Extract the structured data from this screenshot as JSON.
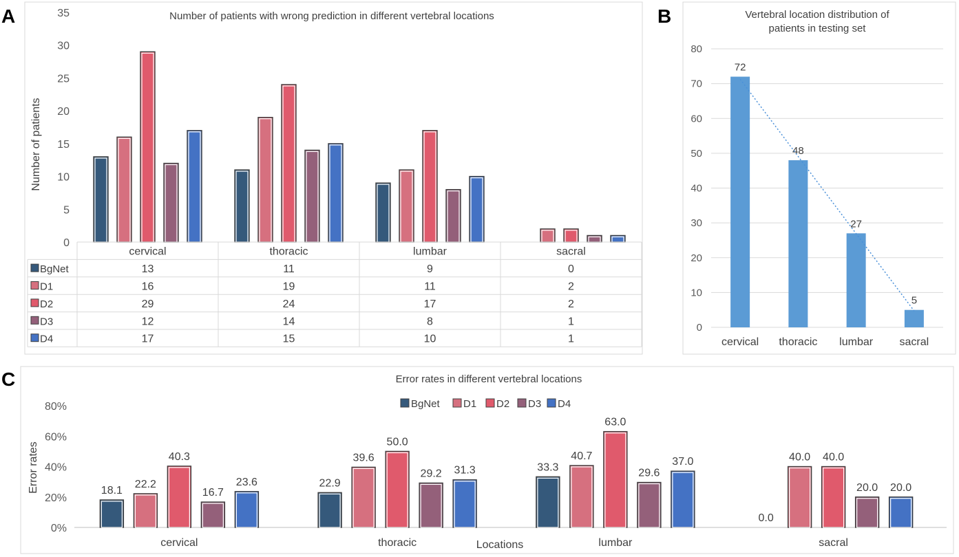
{
  "panels": {
    "A": "A",
    "B": "B",
    "C": "C"
  },
  "colors": {
    "BgNet": "#35597b",
    "D1": "#d6707f",
    "D2": "#e05a6c",
    "D3": "#94607a",
    "D4": "#4472c4",
    "blue_bar": "#5b9bd5",
    "trend": "#4a90d9"
  },
  "chart_data": [
    {
      "id": "A",
      "type": "bar",
      "title": "Number of patients with wrong prediction in different vertebral locations",
      "ylabel": "Number of patients",
      "xlabel": "",
      "ylim": [
        0,
        35
      ],
      "yticks": [
        "0",
        "5",
        "10",
        "15",
        "20",
        "25",
        "30",
        "35"
      ],
      "categories": [
        "cervical",
        "thoracic",
        "lumbar",
        "sacral"
      ],
      "series": [
        {
          "name": "BgNet",
          "values": [
            13,
            11,
            9,
            0
          ],
          "labels": [
            "13",
            "11",
            "9",
            "0"
          ]
        },
        {
          "name": "D1",
          "values": [
            16,
            19,
            11,
            2
          ],
          "labels": [
            "16",
            "19",
            "11",
            "2"
          ]
        },
        {
          "name": "D2",
          "values": [
            29,
            24,
            17,
            2
          ],
          "labels": [
            "29",
            "24",
            "17",
            "2"
          ]
        },
        {
          "name": "D3",
          "values": [
            12,
            14,
            8,
            1
          ],
          "labels": [
            "12",
            "14",
            "8",
            "1"
          ]
        },
        {
          "name": "D4",
          "values": [
            17,
            15,
            10,
            1
          ],
          "labels": [
            "17",
            "15",
            "10",
            "1"
          ]
        }
      ],
      "data_table": true
    },
    {
      "id": "B",
      "type": "bar",
      "title": "Vertebral location distribution of patients in testing set",
      "title_lines": [
        "Vertebral location distribution of",
        "patients in testing set"
      ],
      "xlabel": "",
      "ylabel": "",
      "ylim": [
        0,
        80
      ],
      "yticks": [
        "0",
        "10",
        "20",
        "30",
        "40",
        "50",
        "60",
        "70",
        "80"
      ],
      "categories": [
        "cervical",
        "thoracic",
        "lumbar",
        "sacral"
      ],
      "values": [
        72,
        48,
        27,
        5
      ],
      "labels": [
        "72",
        "48",
        "27",
        "5"
      ],
      "trendline": "linear, dotted"
    },
    {
      "id": "C",
      "type": "bar",
      "title": "Error rates in different vertebral locations",
      "xlabel": "Locations",
      "ylabel": "Error rates",
      "ylim": [
        0,
        80
      ],
      "yticks": [
        "0%",
        "20%",
        "40%",
        "60%",
        "80%"
      ],
      "legend": "top",
      "categories": [
        "cervical",
        "thoracic",
        "lumbar",
        "sacral"
      ],
      "series": [
        {
          "name": "BgNet",
          "values": [
            18.1,
            22.9,
            33.3,
            0.0
          ],
          "labels": [
            "18.1",
            "22.9",
            "33.3",
            "0.0"
          ]
        },
        {
          "name": "D1",
          "values": [
            22.2,
            39.6,
            40.7,
            40.0
          ],
          "labels": [
            "22.2",
            "39.6",
            "40.7",
            "40.0"
          ]
        },
        {
          "name": "D2",
          "values": [
            40.3,
            50.0,
            63.0,
            40.0
          ],
          "labels": [
            "40.3",
            "50.0",
            "63.0",
            "40.0"
          ]
        },
        {
          "name": "D3",
          "values": [
            16.7,
            29.2,
            29.6,
            20.0
          ],
          "labels": [
            "16.7",
            "29.2",
            "29.6",
            "20.0"
          ]
        },
        {
          "name": "D4",
          "values": [
            23.6,
            31.3,
            37.0,
            20.0
          ],
          "labels": [
            "23.6",
            "31.3",
            "37.0",
            "20.0"
          ]
        }
      ]
    }
  ]
}
